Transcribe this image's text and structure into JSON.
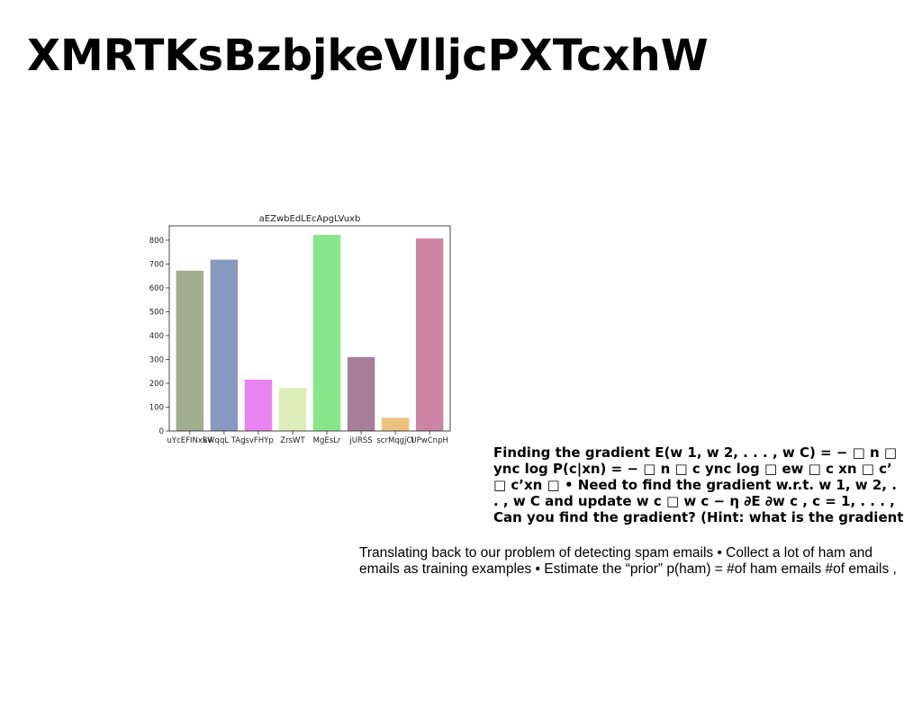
{
  "slide": {
    "title": "XMRTKsBzbjkeVlljcPXTcxhW"
  },
  "chart_data": {
    "type": "bar",
    "title": "aEZwbEdLEcApgLVuxb",
    "categories": [
      "uYcEFINxSV",
      "kWqqL TAg",
      "jsvFHYp",
      "ZrsWT",
      "MgEsLr",
      "jURSS",
      "scrMqgjCI",
      "UPwCnpH"
    ],
    "values": [
      672,
      718,
      215,
      180,
      822,
      310,
      55,
      807
    ],
    "colors": [
      "#a1ae8f",
      "#8899bf",
      "#e884f0",
      "#dcedb9",
      "#88e68a",
      "#a77f98",
      "#eac27e",
      "#cc85a5"
    ],
    "ylim": [
      0,
      860
    ],
    "yticks": [
      0,
      100,
      200,
      300,
      400,
      500,
      600,
      700,
      800
    ],
    "xlabel": "",
    "ylabel": "",
    "grid": false
  },
  "text_blocks": {
    "bold_lines": [
      "Finding the gradient E(w 1, w 2, . . . , w C) = − □ n □",
      "ync log P(c|xn) = − □ n □ c ync log □ ew □ c xn □ c’",
      "□ c’xn □ • Need to find the gradient w.r.t. w 1, w 2, .",
      ". , w C and update w c □ w c − η ∂E ∂w c , c = 1, . . . ,",
      "Can you find the gradient? (Hint: what is the gradient"
    ],
    "plain_lines": [
      "Translating back to our problem of detecting spam emails • Collect a lot of ham and",
      "emails as training examples • Estimate the “prior” p(ham) = #of ham emails #of emails ,"
    ]
  }
}
